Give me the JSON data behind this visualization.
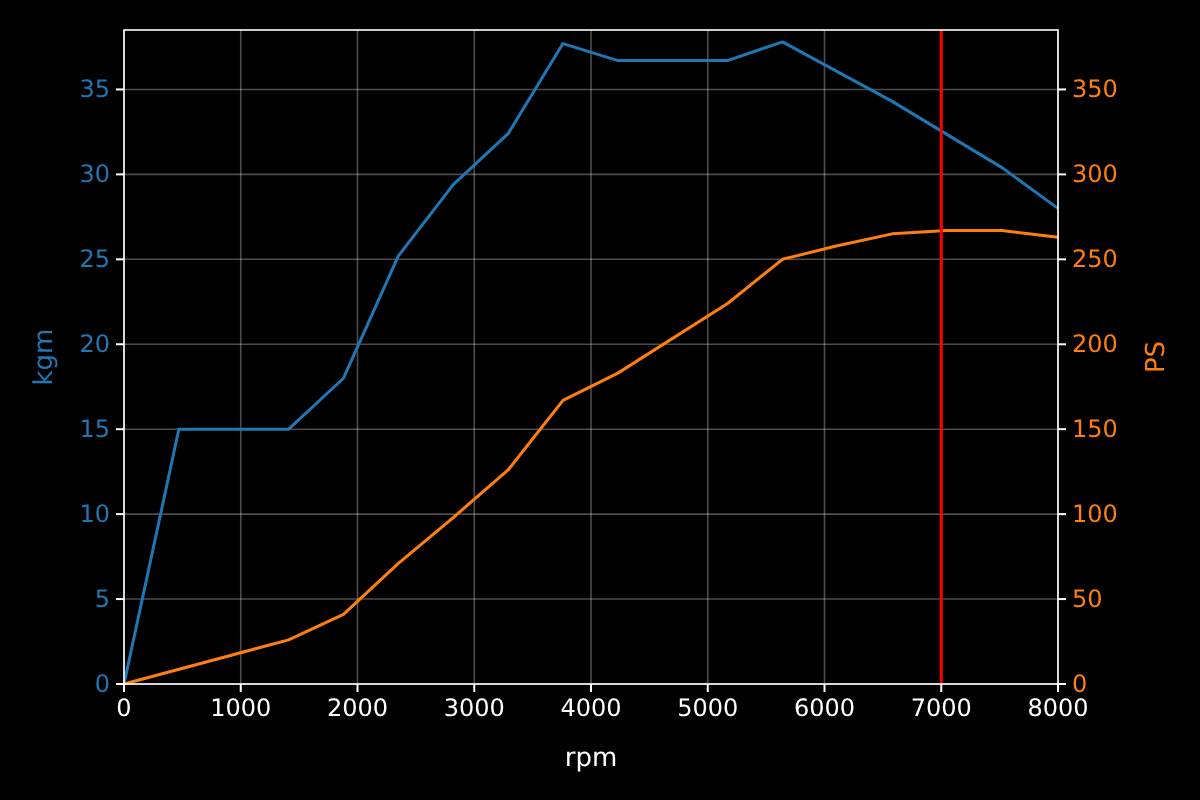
{
  "chart_data": {
    "type": "line",
    "xlabel": "rpm",
    "ylabel": "kgm",
    "y2label": "PS",
    "xlim": [
      0,
      8000
    ],
    "xticks": [
      0,
      1000,
      2000,
      3000,
      4000,
      5000,
      6000,
      7000,
      8000
    ],
    "ylim": [
      0,
      38.5
    ],
    "yticks": [
      0,
      5,
      10,
      15,
      20,
      25,
      30,
      35
    ],
    "y2lim": [
      0,
      385
    ],
    "y2ticks": [
      0,
      50,
      100,
      150,
      200,
      250,
      300,
      350
    ],
    "grid": true,
    "series": [
      {
        "color": "#1f77b4",
        "x": [
          0,
          470,
          1410,
          1880,
          2350,
          2820,
          3290,
          3760,
          4230,
          5170,
          5640,
          6580,
          7520,
          8000
        ],
        "values": [
          0,
          15,
          15,
          18,
          25.2,
          29.4,
          32.4,
          37.7,
          36.7,
          36.7,
          37.8,
          34.3,
          30.4,
          28
        ]
      },
      {
        "color": "#ff7f0e",
        "axis": "y2",
        "x": [
          0,
          1410,
          1880,
          2350,
          2820,
          3290,
          3760,
          4230,
          5170,
          5640,
          6110,
          6580,
          7050,
          7520,
          8000
        ],
        "values": [
          0,
          26,
          41,
          71,
          98,
          126,
          167,
          183,
          224,
          250,
          258,
          265,
          267,
          267,
          263
        ]
      }
    ],
    "ref_lines": [
      {
        "axis": "x",
        "value": 7000,
        "color": "#ff0000"
      }
    ]
  }
}
